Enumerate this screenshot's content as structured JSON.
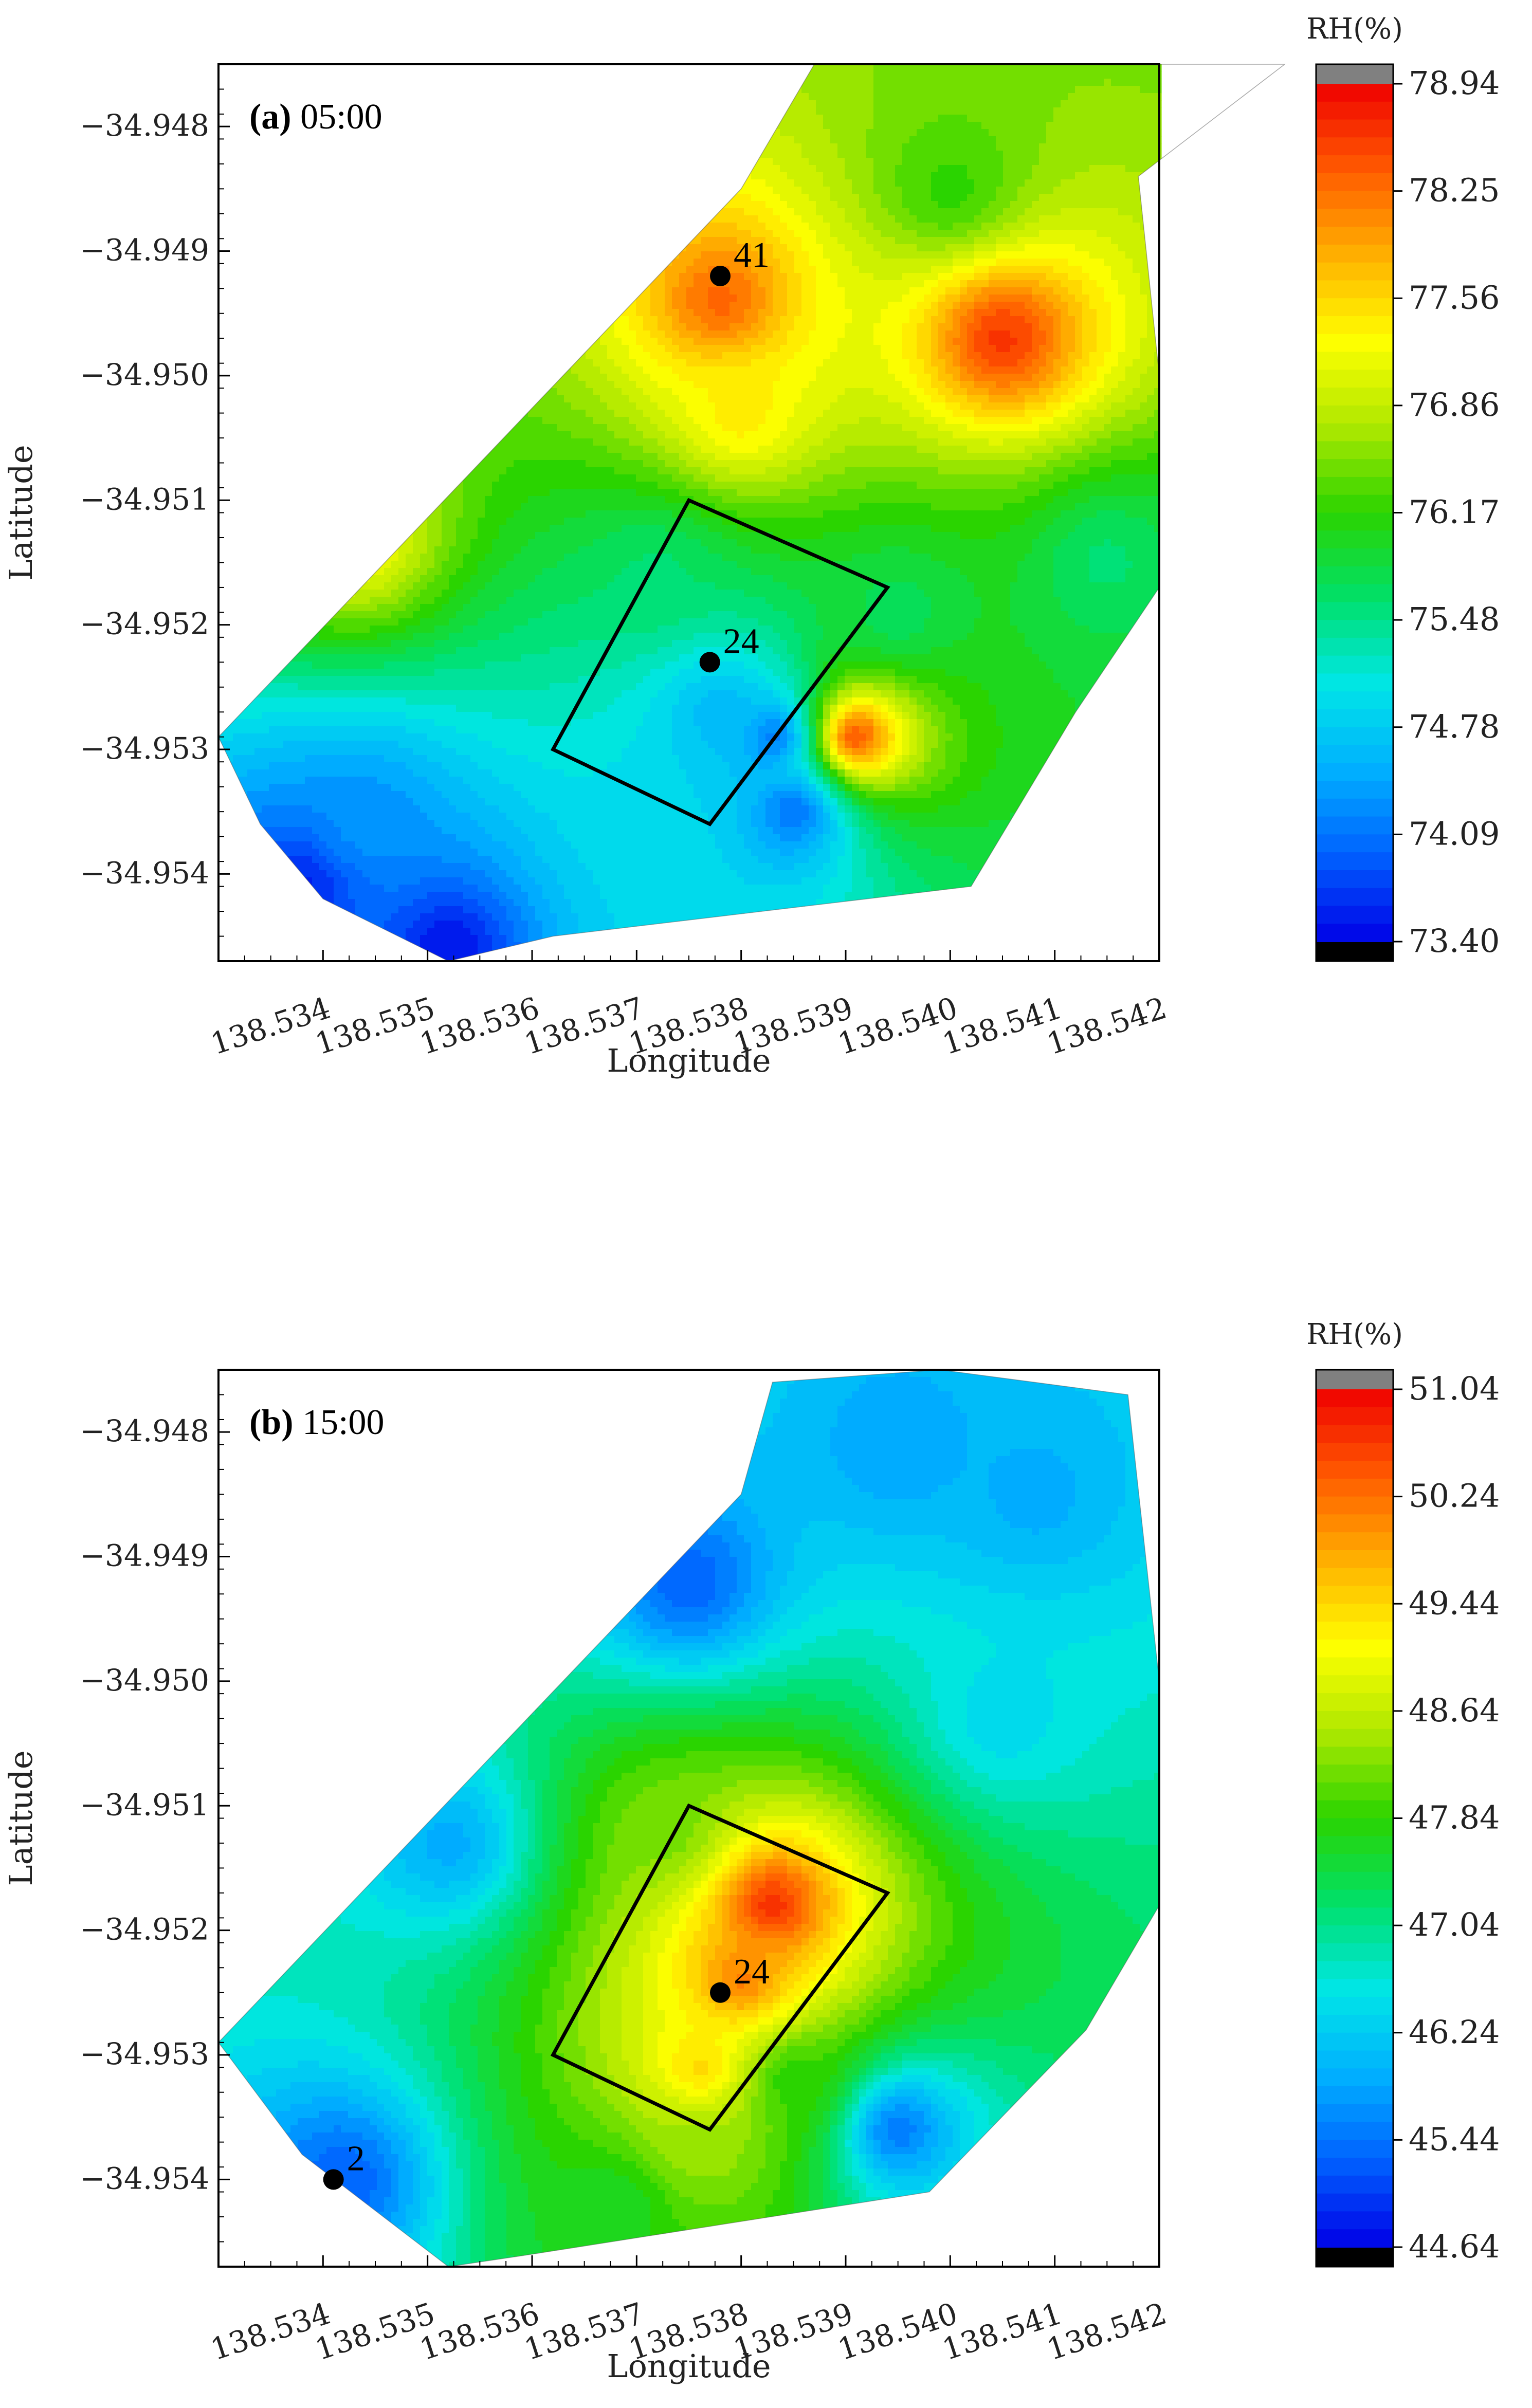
{
  "chart_data": [
    {
      "type": "contour-map",
      "panel_letter": "(a)",
      "panel_time": "05:00",
      "xlabel": "Longitude",
      "ylabel": "Latitude",
      "x_ticks": [
        "138.534",
        "138.535",
        "138.536",
        "138.537",
        "138.538",
        "138.539",
        "138.540",
        "138.541",
        "138.542"
      ],
      "y_ticks": [
        "−34.948",
        "−34.949",
        "−34.950",
        "−34.951",
        "−34.952",
        "−34.953",
        "−34.954"
      ],
      "x_values": [
        138.534,
        138.535,
        138.536,
        138.537,
        138.538,
        138.539,
        138.54,
        138.541,
        138.542
      ],
      "y_values": [
        -34.948,
        -34.949,
        -34.95,
        -34.951,
        -34.952,
        -34.953,
        -34.954
      ],
      "xlim": [
        138.533,
        138.542
      ],
      "ylim": [
        -34.9547,
        -34.9475
      ],
      "colorbar": {
        "title": "RH(%)",
        "ticks": [
          "78.94",
          "78.25",
          "77.56",
          "76.86",
          "76.17",
          "75.48",
          "74.78",
          "74.09",
          "73.40"
        ],
        "min": 73.4,
        "max": 78.94
      },
      "stations": [
        {
          "label": "41",
          "lon": 138.5378,
          "lat": -34.9492
        },
        {
          "label": "24",
          "lon": 138.5377,
          "lat": -34.9523
        }
      ],
      "study_box": [
        [
          138.5375,
          -34.951
        ],
        [
          138.5394,
          -34.9517
        ],
        [
          138.5377,
          -34.9536
        ],
        [
          138.5362,
          -34.953
        ]
      ],
      "hotspots": [
        {
          "lon": 138.5378,
          "lat": -34.9494,
          "rh": 78.3
        },
        {
          "lon": 138.5405,
          "lat": -34.9497,
          "rh": 78.6
        },
        {
          "lon": 138.5391,
          "lat": -34.9529,
          "rh": 78.4
        },
        {
          "lon": 138.5343,
          "lat": -34.9513,
          "rh": 77.3
        },
        {
          "lon": 138.5372,
          "lat": -34.9516,
          "rh": 75.6
        },
        {
          "lon": 138.5378,
          "lat": -34.9527,
          "rh": 74.6
        },
        {
          "lon": 138.5383,
          "lat": -34.9529,
          "rh": 74.2
        },
        {
          "lon": 138.5385,
          "lat": -34.9535,
          "rh": 74.1
        },
        {
          "lon": 138.5338,
          "lat": -34.9541,
          "rh": 73.6
        },
        {
          "lon": 138.5352,
          "lat": -34.9546,
          "rh": 73.5
        },
        {
          "lon": 138.5344,
          "lat": -34.9536,
          "rh": 74.3
        },
        {
          "lon": 138.5372,
          "lat": -34.9538,
          "rh": 74.9
        },
        {
          "lon": 138.5395,
          "lat": -34.9519,
          "rh": 75.7
        },
        {
          "lon": 138.5415,
          "lat": -34.9515,
          "rh": 75.6
        },
        {
          "lon": 138.54,
          "lat": -34.9485,
          "rh": 76.2
        },
        {
          "lon": 138.538,
          "lat": -34.9503,
          "rh": 77.4
        }
      ],
      "base_rh": 76.1
    },
    {
      "type": "contour-map",
      "panel_letter": "(b)",
      "panel_time": "15:00",
      "xlabel": "Longitude",
      "ylabel": "Latitude",
      "x_ticks": [
        "138.534",
        "138.535",
        "138.536",
        "138.537",
        "138.538",
        "138.539",
        "138.540",
        "138.541",
        "138.542"
      ],
      "y_ticks": [
        "−34.948",
        "−34.949",
        "−34.950",
        "−34.951",
        "−34.952",
        "−34.953",
        "−34.954"
      ],
      "x_values": [
        138.534,
        138.535,
        138.536,
        138.537,
        138.538,
        138.539,
        138.54,
        138.541,
        138.542
      ],
      "y_values": [
        -34.948,
        -34.949,
        -34.95,
        -34.951,
        -34.952,
        -34.953,
        -34.954
      ],
      "xlim": [
        138.533,
        138.542
      ],
      "ylim": [
        -34.9547,
        -34.9475
      ],
      "colorbar": {
        "title": "RH(%)",
        "ticks": [
          "51.04",
          "50.24",
          "49.44",
          "48.64",
          "47.84",
          "47.04",
          "46.24",
          "45.44",
          "44.64"
        ],
        "min": 44.64,
        "max": 51.04
      },
      "stations": [
        {
          "label": "24",
          "lon": 138.5378,
          "lat": -34.9525
        },
        {
          "label": "2",
          "lon": 138.5341,
          "lat": -34.954
        }
      ],
      "study_box": [
        [
          138.5375,
          -34.951
        ],
        [
          138.5394,
          -34.9517
        ],
        [
          138.5377,
          -34.9536
        ],
        [
          138.5362,
          -34.953
        ]
      ],
      "hotspots": [
        {
          "lon": 138.5383,
          "lat": -34.9518,
          "rh": 50.7
        },
        {
          "lon": 138.538,
          "lat": -34.9524,
          "rh": 50.1
        },
        {
          "lon": 138.5376,
          "lat": -34.9531,
          "rh": 49.4
        },
        {
          "lon": 138.5376,
          "lat": -34.9537,
          "rh": 48.4
        },
        {
          "lon": 138.5373,
          "lat": -34.9512,
          "rh": 48.2
        },
        {
          "lon": 138.5385,
          "lat": -34.9532,
          "rh": 47.8
        },
        {
          "lon": 138.5368,
          "lat": -34.9542,
          "rh": 47.6
        },
        {
          "lon": 138.5375,
          "lat": -34.9492,
          "rh": 45.3
        },
        {
          "lon": 138.5342,
          "lat": -34.954,
          "rh": 45.3
        },
        {
          "lon": 138.5395,
          "lat": -34.9536,
          "rh": 45.5
        },
        {
          "lon": 138.5395,
          "lat": -34.9481,
          "rh": 45.8
        },
        {
          "lon": 138.5408,
          "lat": -34.9485,
          "rh": 45.9
        },
        {
          "lon": 138.5352,
          "lat": -34.9513,
          "rh": 45.9
        },
        {
          "lon": 138.5405,
          "lat": -34.9503,
          "rh": 46.4
        }
      ],
      "base_rh": 46.3
    }
  ],
  "colors": {
    "scale": [
      "#0000e6",
      "#0060ff",
      "#00b0ff",
      "#00e6e6",
      "#00e06a",
      "#2ad400",
      "#aee800",
      "#ffff00",
      "#ffb000",
      "#ff5a00",
      "#ef0000"
    ],
    "over": "#808080",
    "under": "#000000"
  }
}
